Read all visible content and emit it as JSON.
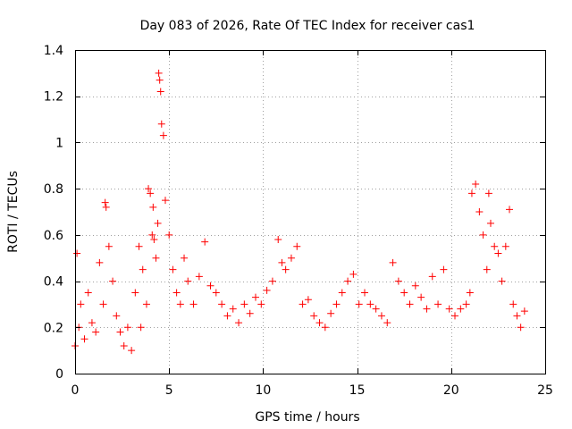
{
  "chart_data": {
    "type": "scatter",
    "title": "Day 083 of 2026, Rate Of TEC Index for receiver cas1",
    "xlabel": "GPS time / hours",
    "ylabel": "ROTI / TECUs",
    "xlim": [
      0,
      25
    ],
    "ylim": [
      0,
      1.4
    ],
    "x_ticks": [
      0,
      5,
      10,
      15,
      20,
      25
    ],
    "x_tick_labels": [
      "0",
      "5",
      "10",
      "15",
      "20",
      "25"
    ],
    "y_ticks": [
      0,
      0.2,
      0.4,
      0.6,
      0.8,
      1.0,
      1.2,
      1.4
    ],
    "y_tick_labels": [
      "0",
      "0.2",
      "0.4",
      "0.6",
      "0.8",
      "1",
      "1.2",
      "1.4"
    ],
    "grid": true,
    "marker": "plus",
    "color": "#ff0000",
    "series": [
      {
        "x": [
          0.0,
          0.1,
          0.2,
          0.3,
          0.5,
          0.7,
          0.9,
          1.1,
          1.3,
          1.5,
          1.6,
          1.65,
          1.8,
          2.0,
          2.2,
          2.4,
          2.6,
          2.8,
          3.0,
          3.2,
          3.4,
          3.5,
          3.6,
          3.8,
          3.9,
          4.0,
          4.1,
          4.15,
          4.2,
          4.3,
          4.4,
          4.45,
          4.5,
          4.55,
          4.6,
          4.7,
          4.8,
          5.0,
          5.2,
          5.4,
          5.6,
          5.8,
          6.0,
          6.3,
          6.6,
          6.9,
          7.2,
          7.5,
          7.8,
          8.1,
          8.4,
          8.7,
          9.0,
          9.3,
          9.6,
          9.9,
          10.2,
          10.5,
          10.8,
          11.0,
          11.2,
          11.5,
          11.8,
          12.1,
          12.4,
          12.7,
          13.0,
          13.3,
          13.6,
          13.9,
          14.2,
          14.5,
          14.8,
          15.1,
          15.4,
          15.7,
          16.0,
          16.3,
          16.6,
          16.9,
          17.2,
          17.5,
          17.8,
          18.1,
          18.4,
          18.7,
          19.0,
          19.3,
          19.6,
          19.9,
          20.2,
          20.5,
          20.8,
          21.0,
          21.1,
          21.3,
          21.5,
          21.7,
          21.9,
          22.0,
          22.1,
          22.3,
          22.5,
          22.7,
          22.9,
          23.1,
          23.3,
          23.5,
          23.7,
          23.9
        ],
        "y": [
          0.12,
          0.52,
          0.2,
          0.3,
          0.15,
          0.35,
          0.22,
          0.18,
          0.48,
          0.3,
          0.74,
          0.72,
          0.55,
          0.4,
          0.25,
          0.18,
          0.12,
          0.2,
          0.1,
          0.35,
          0.55,
          0.2,
          0.45,
          0.3,
          0.8,
          0.78,
          0.6,
          0.72,
          0.58,
          0.5,
          0.65,
          1.3,
          1.27,
          1.22,
          1.08,
          1.03,
          0.75,
          0.6,
          0.45,
          0.35,
          0.3,
          0.5,
          0.4,
          0.3,
          0.42,
          0.57,
          0.38,
          0.35,
          0.3,
          0.25,
          0.28,
          0.22,
          0.3,
          0.26,
          0.33,
          0.3,
          0.36,
          0.4,
          0.58,
          0.48,
          0.45,
          0.5,
          0.55,
          0.3,
          0.32,
          0.25,
          0.22,
          0.2,
          0.26,
          0.3,
          0.35,
          0.4,
          0.43,
          0.3,
          0.35,
          0.3,
          0.28,
          0.25,
          0.22,
          0.48,
          0.4,
          0.35,
          0.3,
          0.38,
          0.33,
          0.28,
          0.42,
          0.3,
          0.45,
          0.28,
          0.25,
          0.28,
          0.3,
          0.35,
          0.78,
          0.82,
          0.7,
          0.6,
          0.45,
          0.78,
          0.65,
          0.55,
          0.52,
          0.4,
          0.55,
          0.71,
          0.3,
          0.25,
          0.2,
          0.27
        ]
      }
    ]
  }
}
